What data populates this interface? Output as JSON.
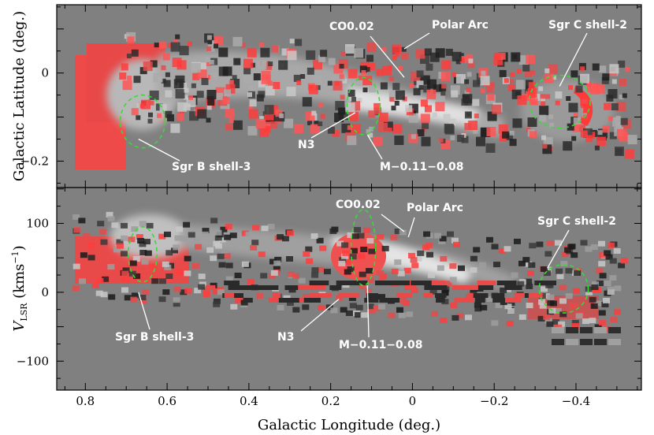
{
  "chart_data": [
    {
      "type": "heatmap",
      "panel": "top",
      "xlim": [
        0.87,
        -0.56
      ],
      "ylim": [
        -0.26,
        0.155
      ],
      "ylabel": "Galactic Latitude (deg.)",
      "y_ticks": [
        0,
        -0.2
      ],
      "y_tick_labels": [
        "0",
        "−0.2"
      ],
      "background": "#808080",
      "annotations": [
        {
          "label": "CO0.02",
          "point": [
            0.02,
            -0.01
          ]
        },
        {
          "label": "Polar Arc",
          "point": [
            0.02,
            0.055
          ]
        },
        {
          "label": "Sgr C shell-2",
          "point": [
            -0.36,
            -0.03
          ]
        },
        {
          "label": "N3",
          "point": [
            0.14,
            -0.09
          ]
        },
        {
          "label": "M−0.11−0.08",
          "point": [
            0.11,
            -0.14
          ]
        },
        {
          "label": "Sgr B shell-3",
          "point": [
            0.67,
            -0.15
          ]
        }
      ],
      "shells": [
        {
          "center": [
            0.66,
            -0.11
          ],
          "radius": [
            0.055,
            0.06
          ]
        },
        {
          "center": [
            0.12,
            -0.075
          ],
          "radius": [
            0.04,
            0.065
          ]
        },
        {
          "center": [
            -0.36,
            -0.065
          ],
          "radius": [
            0.075,
            0.06
          ]
        }
      ]
    },
    {
      "type": "heatmap",
      "panel": "bottom",
      "xlim": [
        0.87,
        -0.56
      ],
      "ylim": [
        -142,
        152
      ],
      "xlabel": "Galactic Longitude (deg.)",
      "ylabel": "V_LSR (kms^-1)",
      "x_ticks": [
        0.8,
        0.6,
        0.4,
        0.2,
        0,
        -0.2,
        -0.4
      ],
      "x_tick_labels": [
        "0.8",
        "0.6",
        "0.4",
        "0.2",
        "0",
        "−0.2",
        "−0.4"
      ],
      "y_ticks": [
        100,
        0,
        -100
      ],
      "y_tick_labels": [
        "100",
        "0",
        "−100"
      ],
      "background": "#808080",
      "annotations": [
        {
          "label": "CO0.02",
          "point": [
            0.02,
            88
          ]
        },
        {
          "label": "Polar Arc",
          "point": [
            0.01,
            80
          ]
        },
        {
          "label": "Sgr C shell-2",
          "point": [
            -0.33,
            35
          ]
        },
        {
          "label": "N3",
          "point": [
            0.18,
            -10
          ]
        },
        {
          "label": "M−0.11−0.08",
          "point": [
            0.11,
            10
          ]
        },
        {
          "label": "Sgr B shell-3",
          "point": [
            0.67,
            0
          ]
        }
      ],
      "shells": [
        {
          "center": [
            0.66,
            55
          ],
          "radius": [
            0.035,
            40
          ]
        },
        {
          "center": [
            0.12,
            65
          ],
          "radius": [
            0.03,
            55
          ]
        },
        {
          "center": [
            -0.37,
            5
          ],
          "radius": [
            0.06,
            35
          ]
        }
      ]
    }
  ],
  "labels": {
    "top_ylabel": "Galactic Latitude (deg.)",
    "bottom_ylabel_main": "V",
    "bottom_ylabel_sub": "LSR",
    "bottom_ylabel_unit_open": " (kms",
    "bottom_ylabel_unit_sup": "−1",
    "bottom_ylabel_unit_close": ")",
    "xlabel": "Galactic Longitude (deg.)"
  },
  "colors": {
    "background": "#808080",
    "emission_red": "#ff4040",
    "emission_gray": "#d8d8d8",
    "dark": "#1a1a1a",
    "shell": "#33dd33",
    "annotation_text": "#ffffff"
  }
}
